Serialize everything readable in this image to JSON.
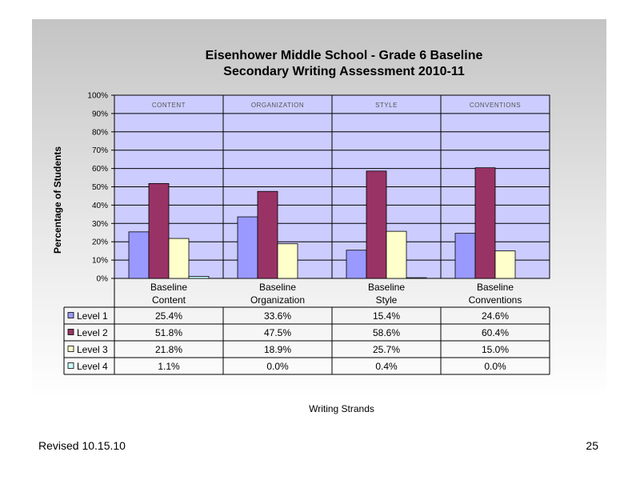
{
  "footer": {
    "revised": "Revised 10.15.10",
    "page_number": "25"
  },
  "chart_data": {
    "type": "bar",
    "title": [
      "Eisenhower Middle School - Grade 6 Baseline",
      "Secondary Writing Assessment 2010-11"
    ],
    "xlabel": "Writing Strands",
    "ylabel": "Percentage of Students",
    "ylim": [
      0,
      100
    ],
    "y_ticks": [
      "0%",
      "10%",
      "20%",
      "30%",
      "40%",
      "50%",
      "60%",
      "70%",
      "80%",
      "90%",
      "100%"
    ],
    "categories": [
      [
        "Baseline",
        "Content"
      ],
      [
        "Baseline",
        "Organization"
      ],
      [
        "Baseline",
        "Style"
      ],
      [
        "Baseline",
        "Conventions"
      ]
    ],
    "panel_labels": [
      "CONTENT",
      "ORGANIZATION",
      "STYLE",
      "CONVENTIONS"
    ],
    "series": [
      {
        "name": "Level 1",
        "values": [
          25.4,
          33.6,
          15.4,
          24.6
        ],
        "labels": [
          "25.4%",
          "33.6%",
          "15.4%",
          "24.6%"
        ],
        "color": "#9999ff"
      },
      {
        "name": "Level 2",
        "values": [
          51.8,
          47.5,
          58.6,
          60.4
        ],
        "labels": [
          "51.8%",
          "47.5%",
          "58.6%",
          "60.4%"
        ],
        "color": "#993366"
      },
      {
        "name": "Level 3",
        "values": [
          21.8,
          18.9,
          25.7,
          15.0
        ],
        "labels": [
          "21.8%",
          "18.9%",
          "25.7%",
          "15.0%"
        ],
        "color": "#ffffcc"
      },
      {
        "name": "Level 4",
        "values": [
          1.1,
          0.0,
          0.4,
          0.0
        ],
        "labels": [
          "1.1%",
          "0.0%",
          "0.4%",
          "0.0%"
        ],
        "color": "#ccffff"
      }
    ],
    "plot_background": "#ccccff",
    "grid": true,
    "legend": "data-table-below"
  }
}
